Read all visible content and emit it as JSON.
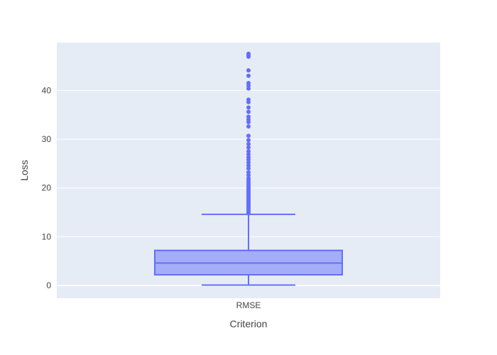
{
  "chart_data": {
    "type": "box",
    "title": "",
    "xlabel": "Criterion",
    "ylabel": "Loss",
    "categories": [
      "RMSE"
    ],
    "ylim": [
      -2.6,
      49.8
    ],
    "yticks": [
      0,
      10,
      20,
      30,
      40
    ],
    "grid": true,
    "legend": "none",
    "colors": {
      "box": "#636efa",
      "plot_bg": "#e5ecf6",
      "grid": "#ffffff"
    },
    "box": {
      "category": "RMSE",
      "min": 0.1,
      "q1": 2.2,
      "median": 4.6,
      "q3": 7.2,
      "upper_fence": 14.6,
      "outliers": [
        14.8,
        15.0,
        15.3,
        15.6,
        15.9,
        16.2,
        16.5,
        16.8,
        17.1,
        17.4,
        17.7,
        18.0,
        18.3,
        18.6,
        18.9,
        19.2,
        19.5,
        19.8,
        20.1,
        20.4,
        20.8,
        21.2,
        21.6,
        22.0,
        22.6,
        23.2,
        24.0,
        24.6,
        25.2,
        25.8,
        26.3,
        26.9,
        27.5,
        28.3,
        29.0,
        29.8,
        30.7,
        32.6,
        33.5,
        34.0,
        34.6,
        35.6,
        36.5,
        37.6,
        38.1,
        40.4,
        41.0,
        41.5,
        43.0,
        44.1,
        46.9,
        47.2,
        47.5
      ]
    }
  }
}
